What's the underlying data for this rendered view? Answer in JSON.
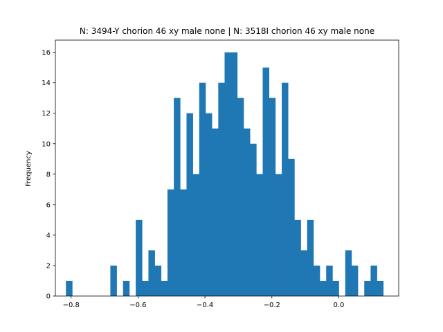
{
  "chart_data": {
    "type": "bar",
    "title": "N: 3494-Y chorion 46 xy male none | N: 3518I chorion 46 xy male none",
    "xlabel": "",
    "ylabel": "Frequency",
    "xlim": [
      -0.847,
      0.179
    ],
    "ylim": [
      0,
      16.8
    ],
    "x_ticks": [
      -0.8,
      -0.6,
      -0.4,
      -0.2,
      0.0
    ],
    "x_tick_labels": [
      "−0.8",
      "−0.6",
      "−0.4",
      "−0.2",
      "0.0"
    ],
    "y_ticks": [
      0,
      2,
      4,
      6,
      8,
      10,
      12,
      14,
      16
    ],
    "y_tick_labels": [
      "0",
      "2",
      "4",
      "6",
      "8",
      "10",
      "12",
      "14",
      "16"
    ],
    "bin_start": -0.8155,
    "bin_width": 0.01897,
    "values": [
      1,
      0,
      0,
      0,
      0,
      0,
      0,
      2,
      0,
      1,
      0,
      5,
      1,
      3,
      2,
      1,
      7,
      13,
      7,
      12,
      8,
      14,
      12,
      11,
      14,
      16,
      16,
      13,
      11,
      10,
      8,
      15,
      13,
      8,
      14,
      9,
      5,
      3,
      5,
      2,
      1,
      2,
      1,
      0,
      3,
      2,
      0,
      1,
      2,
      1
    ],
    "color": "#1f77b4",
    "grid": false,
    "legend": "none"
  }
}
